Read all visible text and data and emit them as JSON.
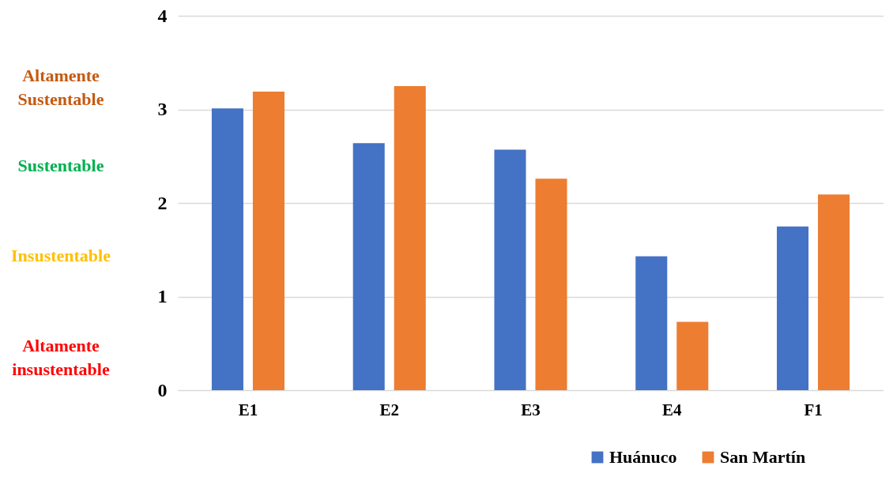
{
  "chart_data": {
    "type": "bar",
    "categories": [
      "E1",
      "E2",
      "E3",
      "E4",
      "F1"
    ],
    "series": [
      {
        "name": "Huánuco",
        "color": "#4472c4",
        "values": [
          3.01,
          2.64,
          2.57,
          1.43,
          1.75
        ]
      },
      {
        "name": "San Martín",
        "color": "#ed7d31",
        "values": [
          3.19,
          3.25,
          2.26,
          0.73,
          2.09
        ]
      }
    ],
    "ylim": [
      0,
      4
    ],
    "yticks": [
      0,
      1,
      2,
      3,
      4
    ],
    "grid": "y",
    "legend": "bottom right",
    "annotations": [
      "Altamente\nSustentable",
      "Sustentable",
      "Insustentable",
      "Altamente\ninsustentable"
    ]
  }
}
